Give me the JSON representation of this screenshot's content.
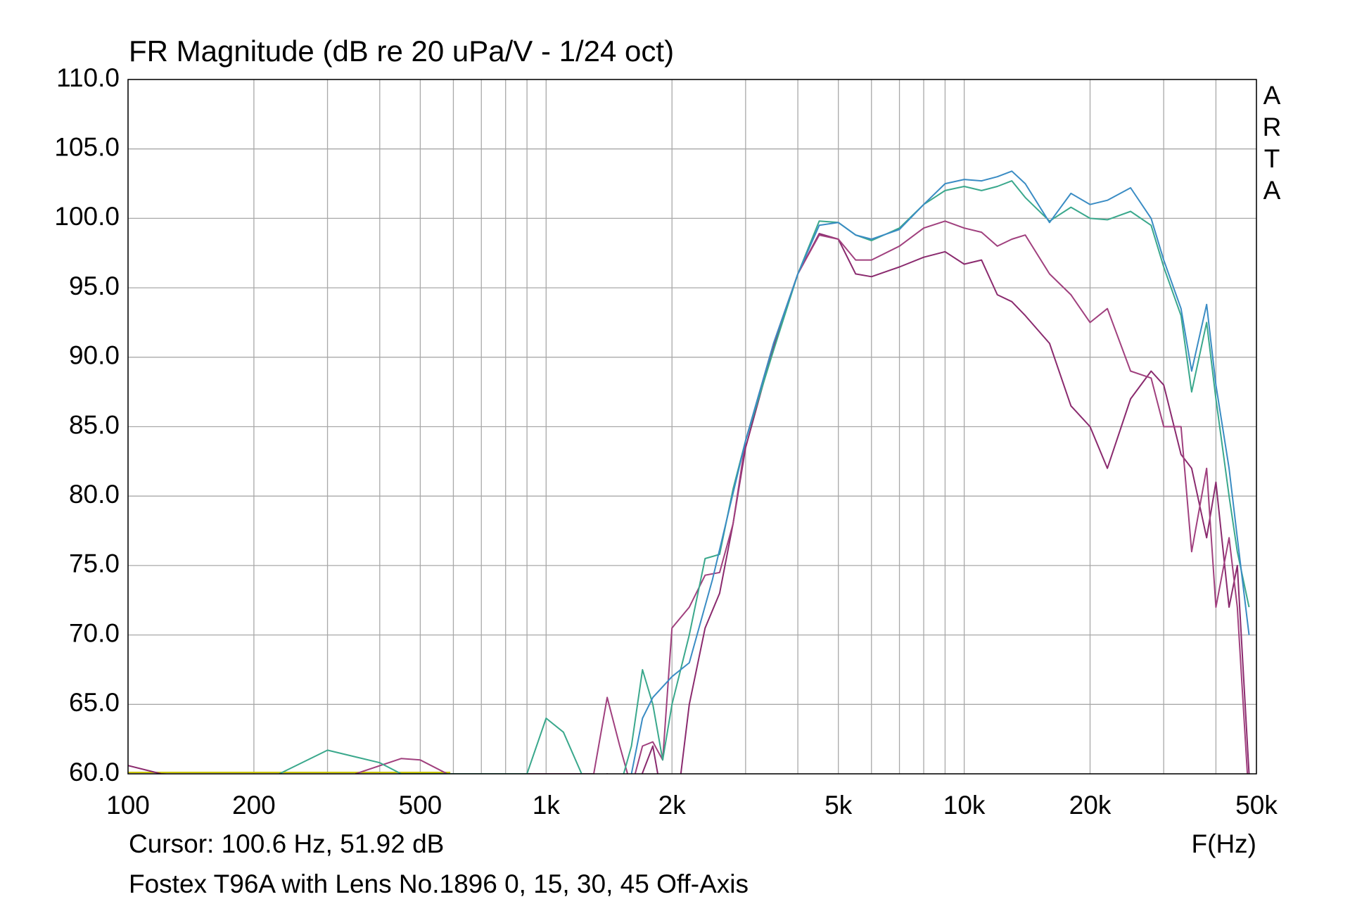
{
  "chart_data": {
    "type": "line",
    "title": "FR Magnitude (dB re 20 uPa/V - 1/24 oct)",
    "side_label": [
      "A",
      "R",
      "T",
      "A"
    ],
    "cursor": "Cursor: 100.6 Hz, 51.92 dB",
    "x_label": "F(Hz)",
    "caption": "Fostex T96A with Lens No.1896 0, 15, 30, 45 Off-Axis",
    "xscale": "log",
    "xlim": [
      100,
      50000
    ],
    "ylim": [
      60,
      110
    ],
    "xticks": [
      100,
      200,
      500,
      {
        "value": 1000,
        "label": "1k"
      },
      {
        "value": 2000,
        "label": "2k"
      },
      {
        "value": 5000,
        "label": "5k"
      },
      {
        "value": 10000,
        "label": "10k"
      },
      {
        "value": 20000,
        "label": "20k"
      },
      {
        "value": 50000,
        "label": "50k"
      }
    ],
    "xgrid_minor": [
      300,
      400,
      600,
      700,
      800,
      900,
      3000,
      4000,
      6000,
      7000,
      8000,
      9000,
      30000,
      40000
    ],
    "yticks": [
      {
        "value": 60,
        "label": "60.0"
      },
      {
        "value": 65,
        "label": "65.0"
      },
      {
        "value": 70,
        "label": "70.0"
      },
      {
        "value": 75,
        "label": "75.0"
      },
      {
        "value": 80,
        "label": "80.0"
      },
      {
        "value": 85,
        "label": "85.0"
      },
      {
        "value": 90,
        "label": "90.0"
      },
      {
        "value": 95,
        "label": "95.0"
      },
      {
        "value": 100,
        "label": "100.0"
      },
      {
        "value": 105,
        "label": "105.0"
      },
      {
        "value": 110,
        "label": "110.0"
      }
    ],
    "grid": true,
    "series": [
      {
        "color": "#c8c400",
        "x": [
          100,
          590
        ],
        "values": [
          60.1,
          60.1
        ]
      },
      {
        "color": "#8a2a6e",
        "x": [
          100,
          120,
          1300,
          1400,
          1600,
          1800,
          1900,
          2000,
          2100,
          2200,
          2400,
          2600,
          2800,
          3000,
          3500,
          4000,
          4500,
          5000,
          5500,
          6000,
          7000,
          8000,
          9000,
          10000,
          11000,
          12000,
          13000,
          14000,
          16000,
          18000,
          20000,
          22000,
          25000,
          28000,
          30000,
          33000,
          35000,
          38000,
          40000,
          43000,
          45000,
          48000
        ],
        "values": [
          60.6,
          60,
          58,
          60,
          58,
          62,
          58,
          58,
          60,
          65,
          70.5,
          73,
          78,
          83.5,
          90.8,
          96,
          98.9,
          98.5,
          96,
          95.8,
          96.5,
          97.2,
          97.6,
          96.7,
          97,
          94.5,
          94,
          93,
          91,
          86.5,
          85,
          82,
          87,
          89,
          88,
          83,
          82,
          77,
          81,
          72,
          75,
          60
        ]
      },
      {
        "color": "#a0407e",
        "x": [
          350,
          450,
          500,
          580,
          1300,
          1400,
          1500,
          1600,
          1700,
          1800,
          1900,
          2000,
          2200,
          2400,
          2600,
          2800,
          3000,
          3500,
          4000,
          4500,
          5000,
          5500,
          6000,
          7000,
          8000,
          9000,
          10000,
          11000,
          12000,
          13000,
          14000,
          16000,
          18000,
          20000,
          22000,
          25000,
          28000,
          30000,
          33000,
          35000,
          38000,
          40000,
          43000,
          45000,
          48000
        ],
        "values": [
          60,
          61.1,
          61,
          60,
          60,
          65.5,
          62,
          59,
          62,
          62.3,
          61,
          70.5,
          72,
          74.3,
          74.5,
          78,
          84,
          91,
          96,
          98.8,
          98.5,
          97,
          97,
          98,
          99.3,
          99.8,
          99.3,
          99,
          98,
          98.5,
          98.8,
          96,
          94.5,
          92.5,
          93.5,
          89,
          88.5,
          85,
          85,
          76,
          82,
          72,
          77,
          72,
          58
        ]
      },
      {
        "color": "#3aa88c",
        "x": [
          230,
          300,
          400,
          450,
          900,
          1000,
          1100,
          1300,
          1500,
          1600,
          1700,
          1800,
          1900,
          2000,
          2200,
          2400,
          2600,
          2800,
          3000,
          3500,
          4000,
          4500,
          5000,
          5500,
          6000,
          7000,
          8000,
          9000,
          10000,
          11000,
          12000,
          13000,
          14000,
          16000,
          18000,
          20000,
          22000,
          25000,
          28000,
          30000,
          33000,
          35000,
          38000,
          40000,
          43000,
          45000,
          48000
        ],
        "values": [
          60,
          61.7,
          60.8,
          60,
          60,
          64,
          63,
          58,
          59,
          62,
          67.5,
          65,
          61,
          65,
          70,
          75.5,
          75.8,
          80.5,
          84,
          90.5,
          96,
          99.8,
          99.7,
          98.8,
          98.4,
          99.3,
          101,
          102,
          102.3,
          102,
          102.3,
          102.7,
          101.5,
          99.8,
          100.8,
          100,
          99.9,
          100.5,
          99.5,
          96.5,
          93,
          87.5,
          92.5,
          87,
          80,
          76,
          72
        ]
      },
      {
        "color": "#3a8cc4",
        "x": [
          1550,
          1600,
          1700,
          1800,
          2000,
          2200,
          2500,
          3000,
          3500,
          4000,
          4500,
          5000,
          5500,
          6000,
          7000,
          8000,
          9000,
          10000,
          11000,
          12000,
          13000,
          14000,
          16000,
          18000,
          20000,
          22000,
          25000,
          28000,
          30000,
          33000,
          35000,
          38000,
          40000,
          43000,
          45000,
          48000
        ],
        "values": [
          58,
          60,
          64,
          65.5,
          67,
          68,
          74,
          84,
          91,
          96,
          99.5,
          99.7,
          98.8,
          98.5,
          99.2,
          101,
          102.5,
          102.8,
          102.7,
          103,
          103.4,
          102.5,
          99.7,
          101.8,
          101,
          101.3,
          102.2,
          100,
          97,
          93.5,
          89,
          93.8,
          88,
          82,
          77,
          70
        ]
      }
    ]
  }
}
